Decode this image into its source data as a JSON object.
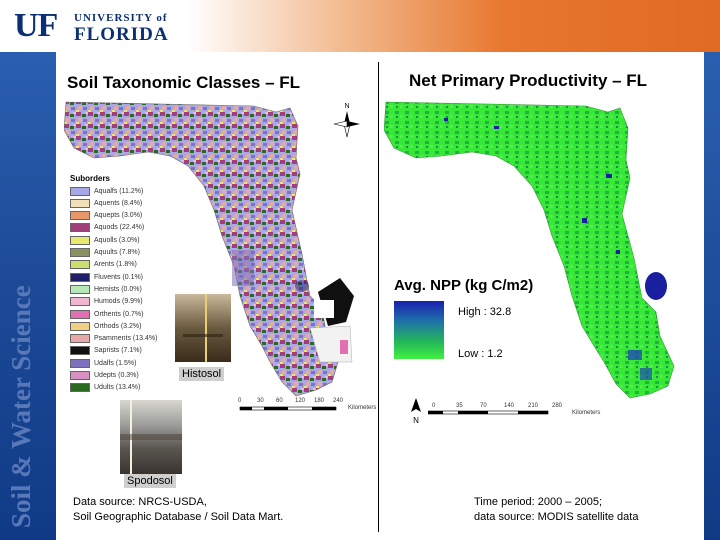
{
  "header": {
    "logo_uf": "UF",
    "logo_university_of": "UNIVERSITY of",
    "logo_florida": "FLORIDA"
  },
  "sidebar": {
    "vertical_text": "Soil & Water Science"
  },
  "left_panel": {
    "title": "Soil Taxonomic Classes – FL",
    "north_label": "N",
    "legend": {
      "title": "Suborders",
      "items": [
        {
          "label": "Aqualfs (11.2%)",
          "color": "#a8a8e8"
        },
        {
          "label": "Aquents (8.4%)",
          "color": "#f2e0b8"
        },
        {
          "label": "Aquepts (3.0%)",
          "color": "#e89868"
        },
        {
          "label": "Aquods (22.4%)",
          "color": "#a0407a"
        },
        {
          "label": "Aquolls (3.0%)",
          "color": "#e8e870"
        },
        {
          "label": "Aquults (7.8%)",
          "color": "#8a9060"
        },
        {
          "label": "Arents (1.8%)",
          "color": "#c8e070"
        },
        {
          "label": "Fluvents (0.1%)",
          "color": "#20206a"
        },
        {
          "label": "Hemists (0.0%)",
          "color": "#b8e8b8"
        },
        {
          "label": "Humods (9.9%)",
          "color": "#f0b8d0"
        },
        {
          "label": "Orthents (0.7%)",
          "color": "#e070b0"
        },
        {
          "label": "Orthods (3.2%)",
          "color": "#f0d080"
        },
        {
          "label": "Psamments (13.4%)",
          "color": "#e8a8a8"
        },
        {
          "label": "Saprists (7.1%)",
          "color": "#101010"
        },
        {
          "label": "Udalfs (1.5%)",
          "color": "#8070c0"
        },
        {
          "label": "Udepts (0.3%)",
          "color": "#d890c0"
        },
        {
          "label": "Udults (13.4%)",
          "color": "#2a6a20"
        }
      ]
    },
    "photos": [
      {
        "caption": "Histosol"
      },
      {
        "caption": "Spodosol"
      }
    ],
    "scale": {
      "ticks": [
        "0",
        "30",
        "60",
        "120",
        "180",
        "240"
      ],
      "unit": "Kilometers"
    },
    "source_line1": "Data source: NRCS-USDA,",
    "source_line2": "Soil Geographic Database / Soil Data Mart."
  },
  "right_panel": {
    "title": "Net Primary Productivity – FL",
    "legend_title": "Avg. NPP (kg C/m2)",
    "high_label": "High : 32.8",
    "low_label": "Low : 1.2",
    "ramp_colors": [
      "#1a1fb0",
      "#23b65a",
      "#40f040"
    ],
    "north_label": "N",
    "scale": {
      "ticks": [
        "0",
        "35",
        "70",
        "140",
        "210",
        "280"
      ],
      "unit": "Kilometers"
    },
    "period_line1": "Time period: 2000 – 2005;",
    "period_line2": "data source: MODIS satellite data"
  }
}
